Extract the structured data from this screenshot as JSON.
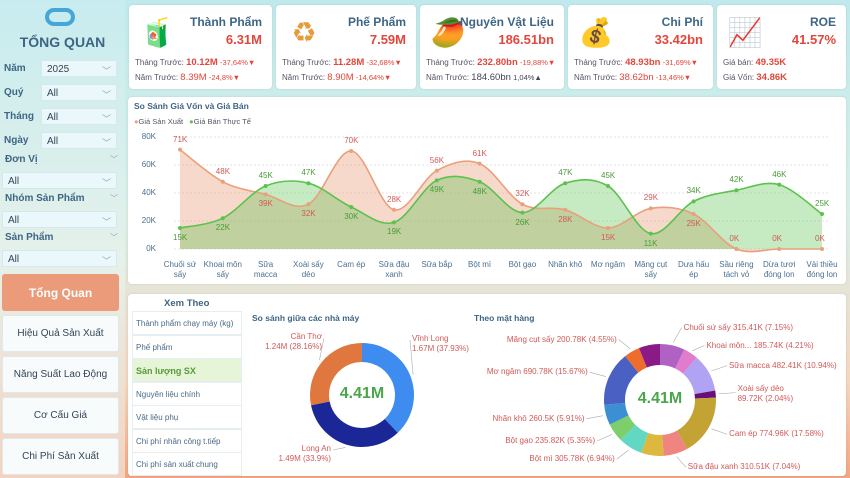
{
  "sidebar": {
    "title": "TỔNG QUAN",
    "filters": [
      {
        "label": "Năm",
        "value": "2025"
      },
      {
        "label": "Quý",
        "value": "All"
      },
      {
        "label": "Tháng",
        "value": "All"
      },
      {
        "label": "Ngày",
        "value": "All"
      },
      {
        "label": "Đơn Vị",
        "value": "All"
      },
      {
        "label": "Nhóm Sản Phẩm",
        "value": "All"
      },
      {
        "label": "Sản Phẩm",
        "value": "All"
      }
    ],
    "nav": [
      "Tổng Quan",
      "Hiệu Quả Sản Xuất",
      "Năng Suất Lao Động",
      "Cơ Cấu Giá",
      "Chi Phí Sản Xuất"
    ]
  },
  "kpis": [
    {
      "icon": "grocery-icon",
      "title": "Thành Phẩm",
      "value": "6.31M",
      "r1_label": "Tháng Trước:",
      "r1_value": "10.12M",
      "r1_pct": "-37,64%▼",
      "r2_label": "Năm Trước:",
      "r2_value": "8.39M",
      "r2_pct": "-24,8%▼"
    },
    {
      "icon": "recycle-icon",
      "title": "Phế Phẩm",
      "value": "7.59M",
      "r1_label": "Tháng Trước:",
      "r1_value": "11.28M",
      "r1_pct": "-32,68%▼",
      "r2_label": "Năm Trước:",
      "r2_value": "8.90M",
      "r2_pct": "-14,64%▼"
    },
    {
      "icon": "mango-icon",
      "title": "Nguyên Vật Liệu",
      "value": "186.51bn",
      "r1_label": "Tháng Trước:",
      "r1_value": "232.80bn",
      "r1_pct": "-19,88%▼",
      "r2_label": "Năm Trước:",
      "r2_value": "184.60bn",
      "r2_pct": "1,04%▲"
    },
    {
      "icon": "coin-hand-icon",
      "title": "Chi Phí",
      "value": "33.42bn",
      "r1_label": "Tháng Trước:",
      "r1_value": "48.93bn",
      "r1_pct": "-31,69%▼",
      "r2_label": "Năm Trước:",
      "r2_value": "38.62bn",
      "r2_pct": "-13,46%▼"
    },
    {
      "icon": "growth-coins-icon",
      "title": "ROE",
      "value": "41.57%",
      "r1_label": "Giá bán:",
      "r1_value": "49.35K",
      "r1_pct": "",
      "r2_label": "Giá Vốn:",
      "r2_value": "34.86K",
      "r2_pct": ""
    }
  ],
  "chart_data": [
    {
      "type": "area",
      "title": "So Sánh Giá Vốn và Giá Bán",
      "legend_position": "top-left",
      "ylim": [
        0,
        80000
      ],
      "yticks": [
        "0K",
        "20K",
        "40K",
        "60K",
        "80K"
      ],
      "grid": true,
      "categories": [
        "Chuối sứ sấy",
        "Khoai môn sấy",
        "Sữa macca",
        "Xoài sấy dẻo",
        "Cam ép",
        "Sữa đậu xanh",
        "Sữa bắp",
        "Bột mì",
        "Bột gạo",
        "Nhãn khô",
        "Mơ ngâm",
        "Măng cụt sấy",
        "Dưa hấu ép",
        "Sầu riêng tách vỏ",
        "Dừa tươi đóng lon",
        "Vải thiều đóng lon"
      ],
      "series": [
        {
          "name": "Giá Sản Xuất",
          "color": "#e9a07c",
          "values": [
            71,
            48,
            39,
            32,
            70,
            28,
            56,
            61,
            32,
            28,
            15,
            29,
            25,
            0,
            0,
            0
          ]
        },
        {
          "name": "Giá Bán Thực Tế",
          "color": "#5cc24e",
          "values": [
            15,
            22,
            45,
            47,
            30,
            19,
            49,
            48,
            26,
            47,
            45,
            11,
            34,
            42,
            46,
            25
          ]
        }
      ]
    },
    {
      "type": "pie",
      "title": "So sánh giữa các nhà máy",
      "center_label": "4.41M",
      "slices": [
        {
          "name": "Vĩnh Long",
          "value": "1.67M",
          "pct": 37.93,
          "color": "#3f8cf0"
        },
        {
          "name": "Long An",
          "value": "1.49M",
          "pct": 33.9,
          "color": "#1b2796"
        },
        {
          "name": "Cần Thơ",
          "value": "1.24M",
          "pct": 28.16,
          "color": "#e0773f"
        }
      ]
    },
    {
      "type": "pie",
      "title": "Theo mặt hàng",
      "center_label": "4.41M",
      "slices": [
        {
          "name": "Chuối sứ sấy",
          "value": "315.41K",
          "pct": 7.15,
          "color": "#b061c4"
        },
        {
          "name": "Khoai môn...",
          "value": "185.74K",
          "pct": 4.21,
          "color": "#e07ccb"
        },
        {
          "name": "Sữa macca",
          "value": "482.41K",
          "pct": 10.94,
          "color": "#b1a3f3"
        },
        {
          "name": "Xoài sấy dẻo",
          "value": "89.72K",
          "pct": 2.04,
          "color": "#6a0f7a"
        },
        {
          "name": "Cam ép",
          "value": "774.96K",
          "pct": 17.58,
          "color": "#c2a333"
        },
        {
          "name": "Sữa đậu xanh",
          "value": "310.51K",
          "pct": 7.04,
          "color": "#ef8480"
        },
        {
          "name": "",
          "value": "",
          "pct": 6.5,
          "color": "#dcb83e"
        },
        {
          "name": "Bột mì",
          "value": "305.78K",
          "pct": 6.94,
          "color": "#62d8c2"
        },
        {
          "name": "Bột gạo",
          "value": "235.82K",
          "pct": 5.35,
          "color": "#7ccf6a"
        },
        {
          "name": "Nhãn khô",
          "value": "260.5K",
          "pct": 5.91,
          "color": "#3d8fd4"
        },
        {
          "name": "Mơ ngâm",
          "value": "690.78K",
          "pct": 15.67,
          "color": "#4a60c2"
        },
        {
          "name": "Măng cụt sấy",
          "value": "200.78K",
          "pct": 4.55,
          "color": "#ee6d2c"
        },
        {
          "name": "",
          "value": "",
          "pct": 6.12,
          "color": "#8a1a86"
        }
      ]
    }
  ],
  "xem_theo": {
    "title": "Xem Theo",
    "options": [
      "Thành phẩm chạy máy (kg)",
      "Phế phẩm",
      "Sản lượng SX",
      "Nguyên liệu chính",
      "Vật liệu phụ",
      "Chi phí nhân công t.tiếp",
      "Chi phí sản xuất chung"
    ],
    "selected": 2
  }
}
